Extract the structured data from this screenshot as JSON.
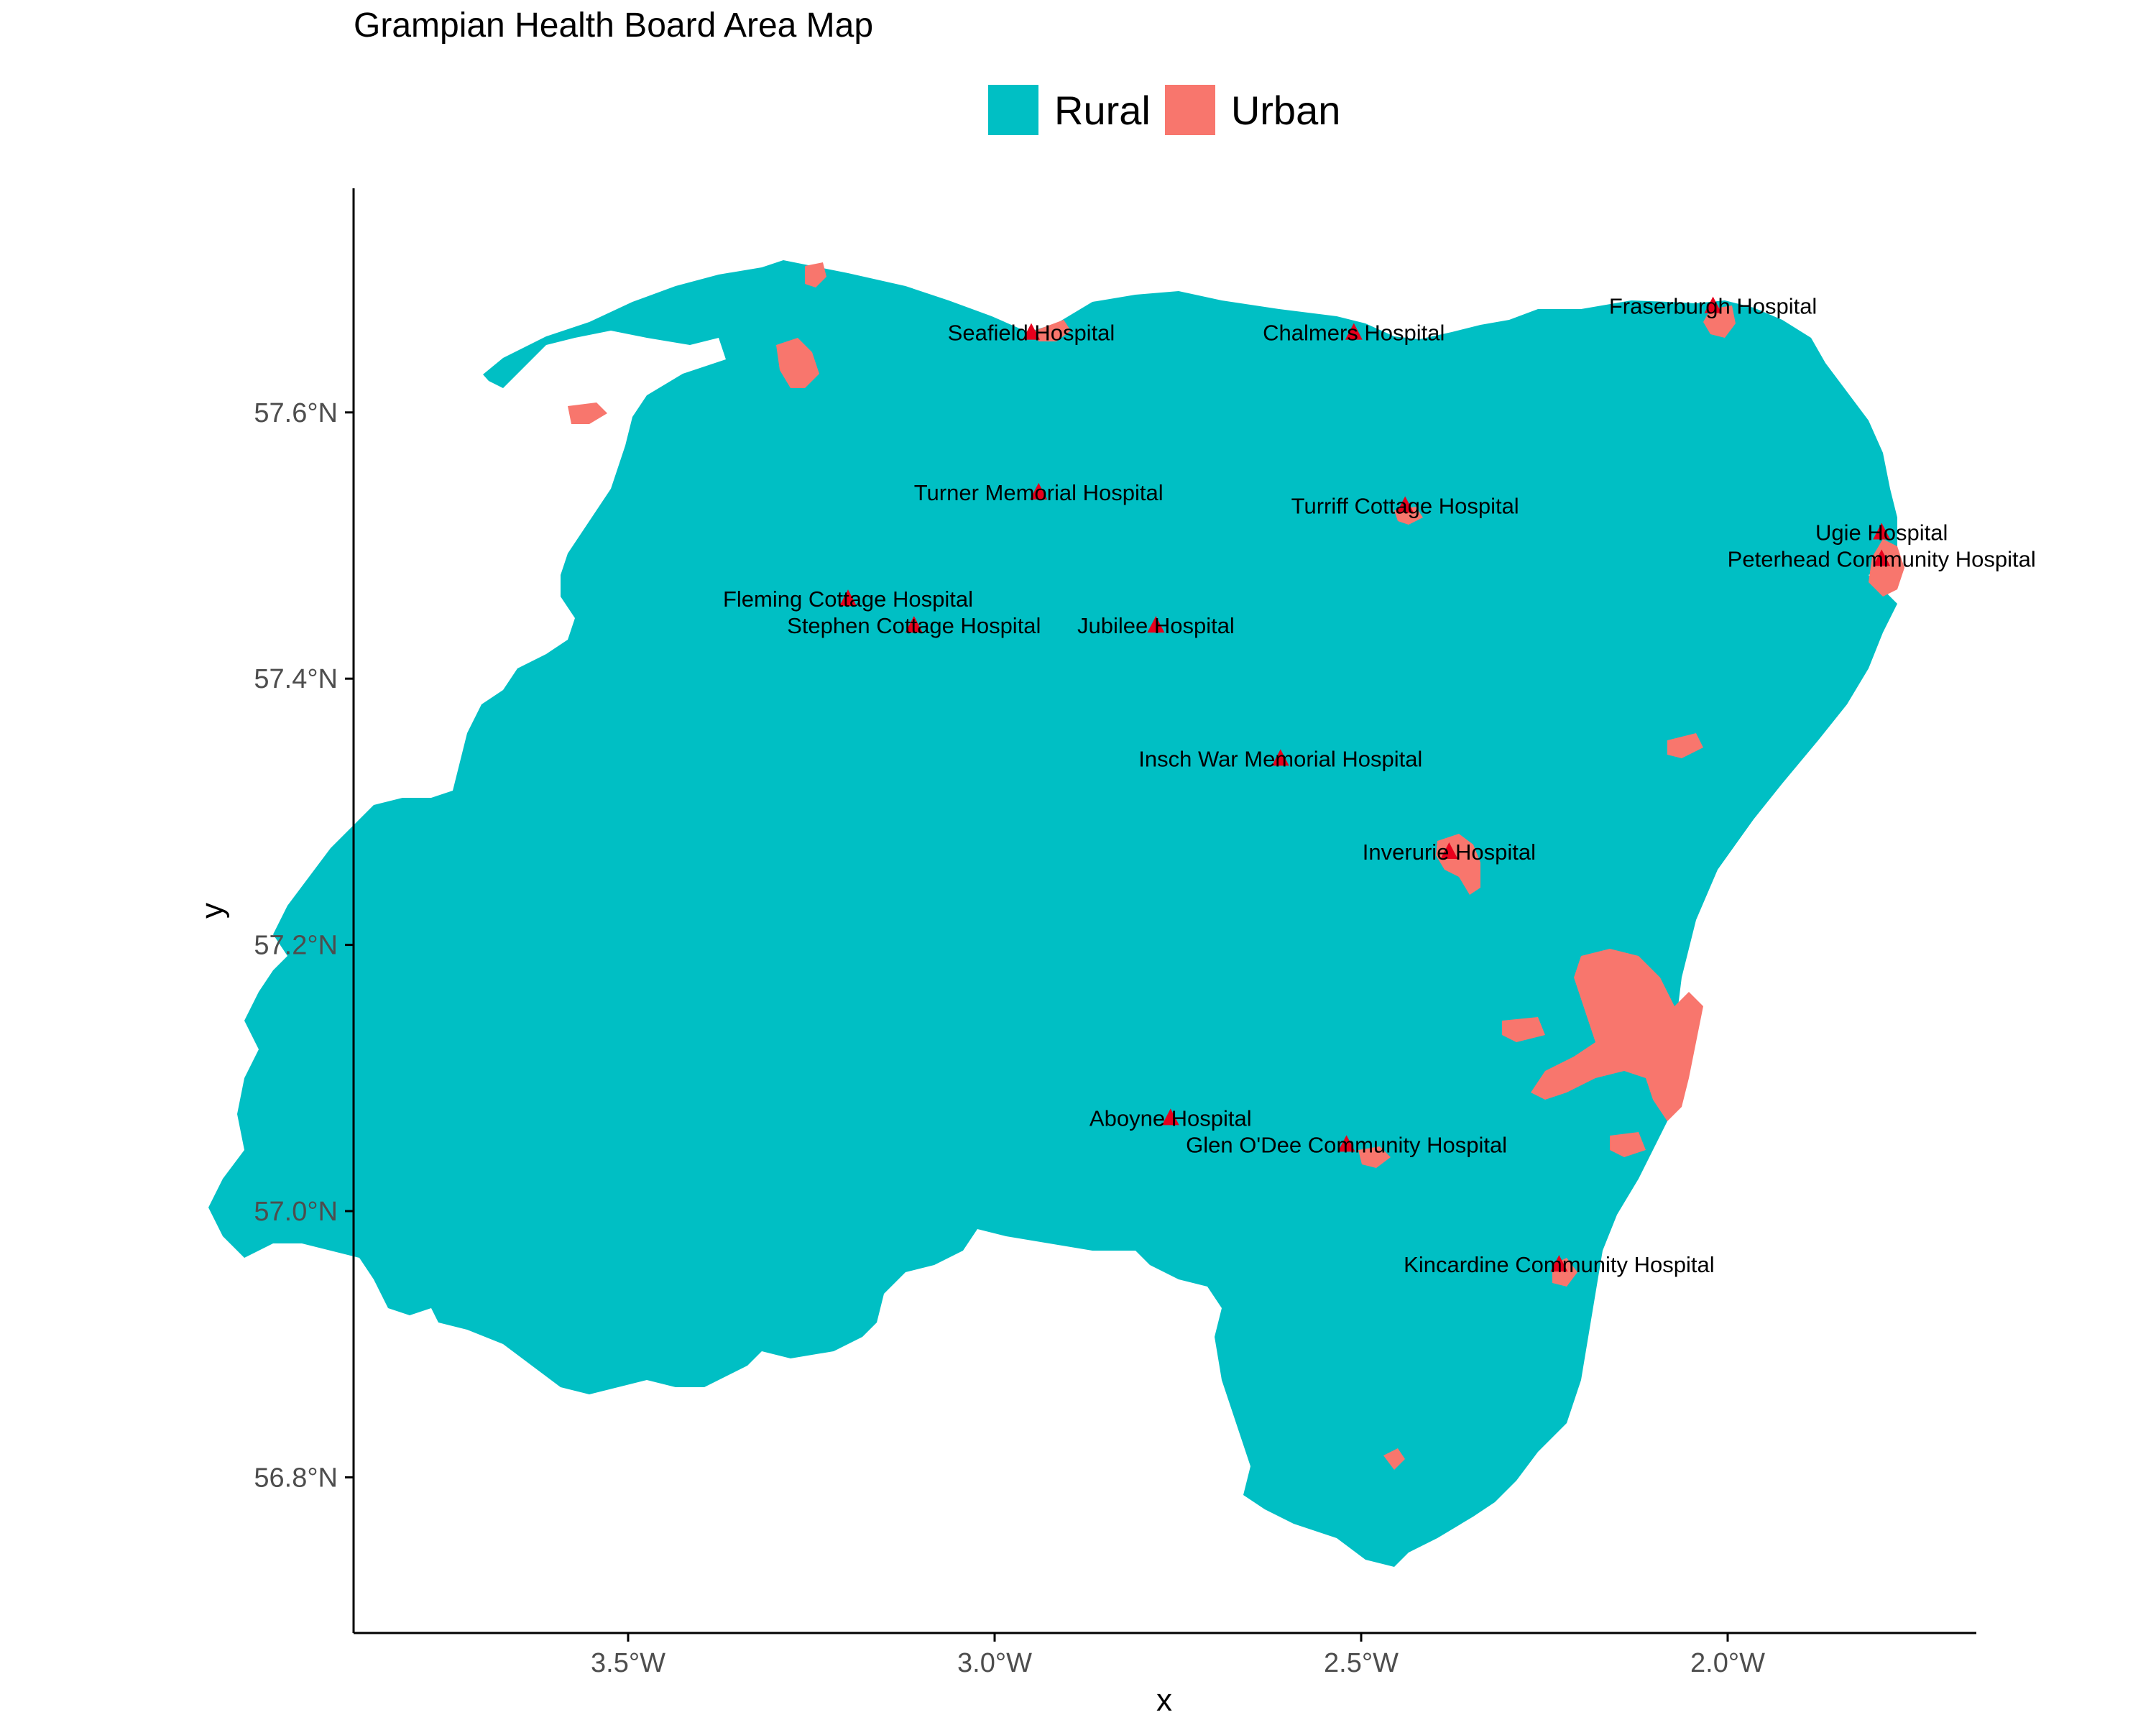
{
  "title": "Grampian Health Board Area Map",
  "legend": [
    {
      "label": "Rural",
      "color": "#00BFC4"
    },
    {
      "label": "Urban",
      "color": "#F8766D"
    }
  ],
  "colors": {
    "rural": "#00BFC4",
    "urban": "#F8766D",
    "hospital": "#E8001C",
    "axis": "#000000"
  },
  "axes": {
    "xlabel": "x",
    "ylabel": "y",
    "xlim": [
      -3.87,
      -1.65
    ],
    "ylim": [
      56.69,
      57.76
    ],
    "x_ticks": [
      {
        "value": -3.5,
        "label": "3.5°W"
      },
      {
        "value": -3.0,
        "label": "3.0°W"
      },
      {
        "value": -2.5,
        "label": "2.5°W"
      },
      {
        "value": -2.0,
        "label": "2.0°W"
      }
    ],
    "y_ticks": [
      {
        "value": 56.8,
        "label": "56.8°N"
      },
      {
        "value": 57.0,
        "label": "57.0°N"
      },
      {
        "value": 57.2,
        "label": "57.2°N"
      },
      {
        "value": 57.4,
        "label": "57.4°N"
      },
      {
        "value": 57.6,
        "label": "57.6°N"
      }
    ]
  },
  "chart_data": {
    "type": "map",
    "title": "Grampian Health Board Area Map",
    "xlabel": "x",
    "ylabel": "y",
    "legend_placement": "top",
    "grid": false,
    "categories": [
      "Rural",
      "Urban"
    ],
    "hospitals": [
      {
        "name": "Seafield Hospital",
        "lon": -2.95,
        "lat": 57.66
      },
      {
        "name": "Chalmers Hospital",
        "lon": -2.51,
        "lat": 57.66
      },
      {
        "name": "Fraserburgh Hospital",
        "lon": -2.02,
        "lat": 57.68
      },
      {
        "name": "Turner Memorial Hospital",
        "lon": -2.94,
        "lat": 57.54
      },
      {
        "name": "Turriff Cottage Hospital",
        "lon": -2.44,
        "lat": 57.53
      },
      {
        "name": "Ugie Hospital",
        "lon": -1.79,
        "lat": 57.51
      },
      {
        "name": "Peterhead Community Hospital",
        "lon": -1.79,
        "lat": 57.49
      },
      {
        "name": "Fleming Cottage Hospital",
        "lon": -3.2,
        "lat": 57.46
      },
      {
        "name": "Stephen Cottage Hospital",
        "lon": -3.11,
        "lat": 57.44
      },
      {
        "name": "Jubilee Hospital",
        "lon": -2.78,
        "lat": 57.44
      },
      {
        "name": "Insch War Memorial Hospital",
        "lon": -2.61,
        "lat": 57.34
      },
      {
        "name": "Inverurie Hospital",
        "lon": -2.38,
        "lat": 57.27
      },
      {
        "name": "Aboyne Hospital",
        "lon": -2.76,
        "lat": 57.07
      },
      {
        "name": "Glen O'Dee Community Hospital",
        "lon": -2.52,
        "lat": 57.05
      },
      {
        "name": "Kincardine Community Hospital",
        "lon": -2.23,
        "lat": 56.96
      }
    ]
  }
}
